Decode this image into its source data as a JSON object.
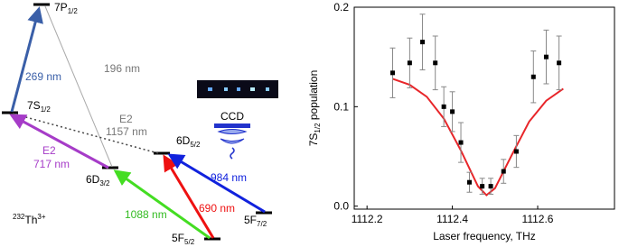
{
  "diagram": {
    "levels": [
      {
        "main": "7P",
        "sub": "1/2"
      },
      {
        "main": "7S",
        "sub": "1/2"
      },
      {
        "main": "6D",
        "sub": "3/2"
      },
      {
        "main": "6D",
        "sub": "5/2"
      },
      {
        "main": "5F",
        "sub": "5/2"
      },
      {
        "main": "5F",
        "sub": "7/2"
      }
    ],
    "transitions": [
      "269 nm",
      "196 nm",
      "1157 nm",
      "717 nm",
      "1088 nm",
      "690 nm",
      "984 nm"
    ],
    "e2": "E2",
    "ion": {
      "mass": "232",
      "element": "Th",
      "charge": "3+"
    },
    "detector": "CCD"
  },
  "chart_data": {
    "type": "scatter",
    "xlabel": "Laser frequency, THz",
    "ylabel": {
      "main": "7S",
      "sub": "1/2",
      "rest": " population"
    },
    "xlim": [
      1112.17,
      1112.78
    ],
    "ylim": [
      -0.003,
      0.2
    ],
    "xticks": [
      1112.2,
      1112.4,
      1112.6
    ],
    "yticks": [
      {
        "value": 0,
        "label": "0.0"
      },
      0.1,
      0.2
    ],
    "points": {
      "color": "#000000",
      "x": [
        1112.26,
        1112.3,
        1112.33,
        1112.36,
        1112.38,
        1112.4,
        1112.42,
        1112.44,
        1112.47,
        1112.49,
        1112.52,
        1112.55,
        1112.59,
        1112.62,
        1112.65
      ],
      "values": [
        0.134,
        0.144,
        0.165,
        0.144,
        0.1,
        0.095,
        0.064,
        0.024,
        0.02,
        0.02,
        0.035,
        0.055,
        0.13,
        0.15,
        0.144
      ],
      "errors": [
        0.025,
        0.025,
        0.028,
        0.027,
        0.02,
        0.02,
        0.02,
        0.01,
        0.008,
        0.008,
        0.012,
        0.016,
        0.026,
        0.027,
        0.027
      ]
    },
    "fit": {
      "color": "#e8262a",
      "x": [
        1112.26,
        1112.3,
        1112.34,
        1112.38,
        1112.42,
        1112.46,
        1112.48,
        1112.5,
        1112.54,
        1112.58,
        1112.62,
        1112.66
      ],
      "values": [
        0.128,
        0.122,
        0.11,
        0.088,
        0.056,
        0.02,
        0.011,
        0.018,
        0.052,
        0.085,
        0.106,
        0.118
      ]
    }
  }
}
